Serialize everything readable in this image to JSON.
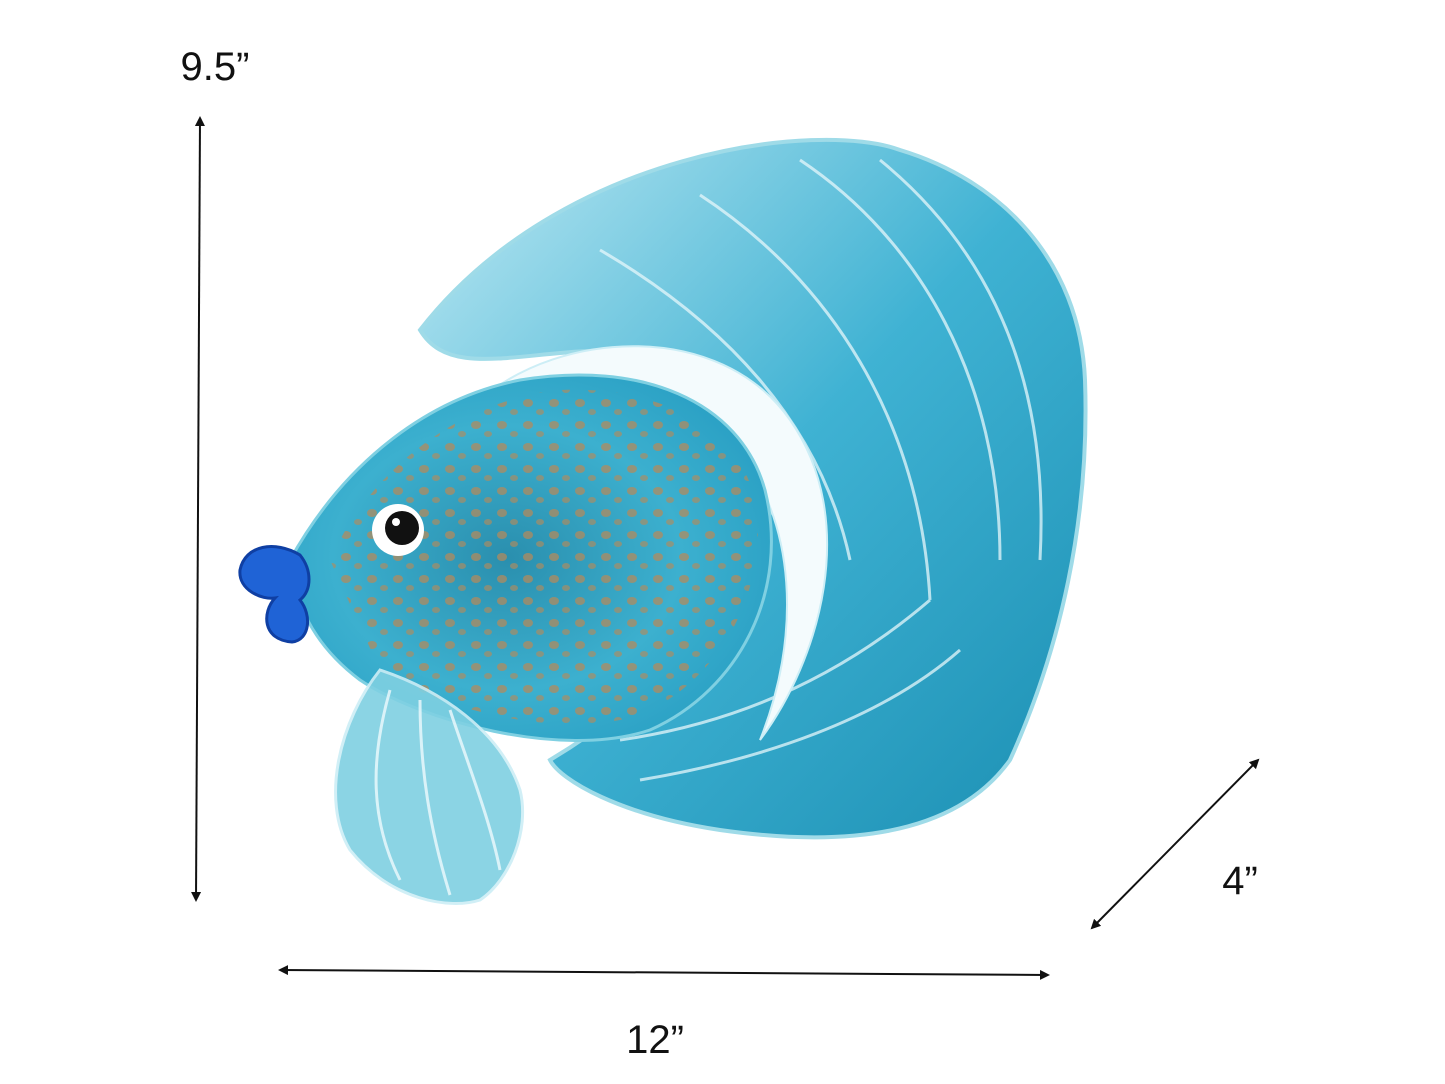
{
  "dimensions": {
    "height": "9.5”",
    "width": "12”",
    "depth": "4”"
  }
}
